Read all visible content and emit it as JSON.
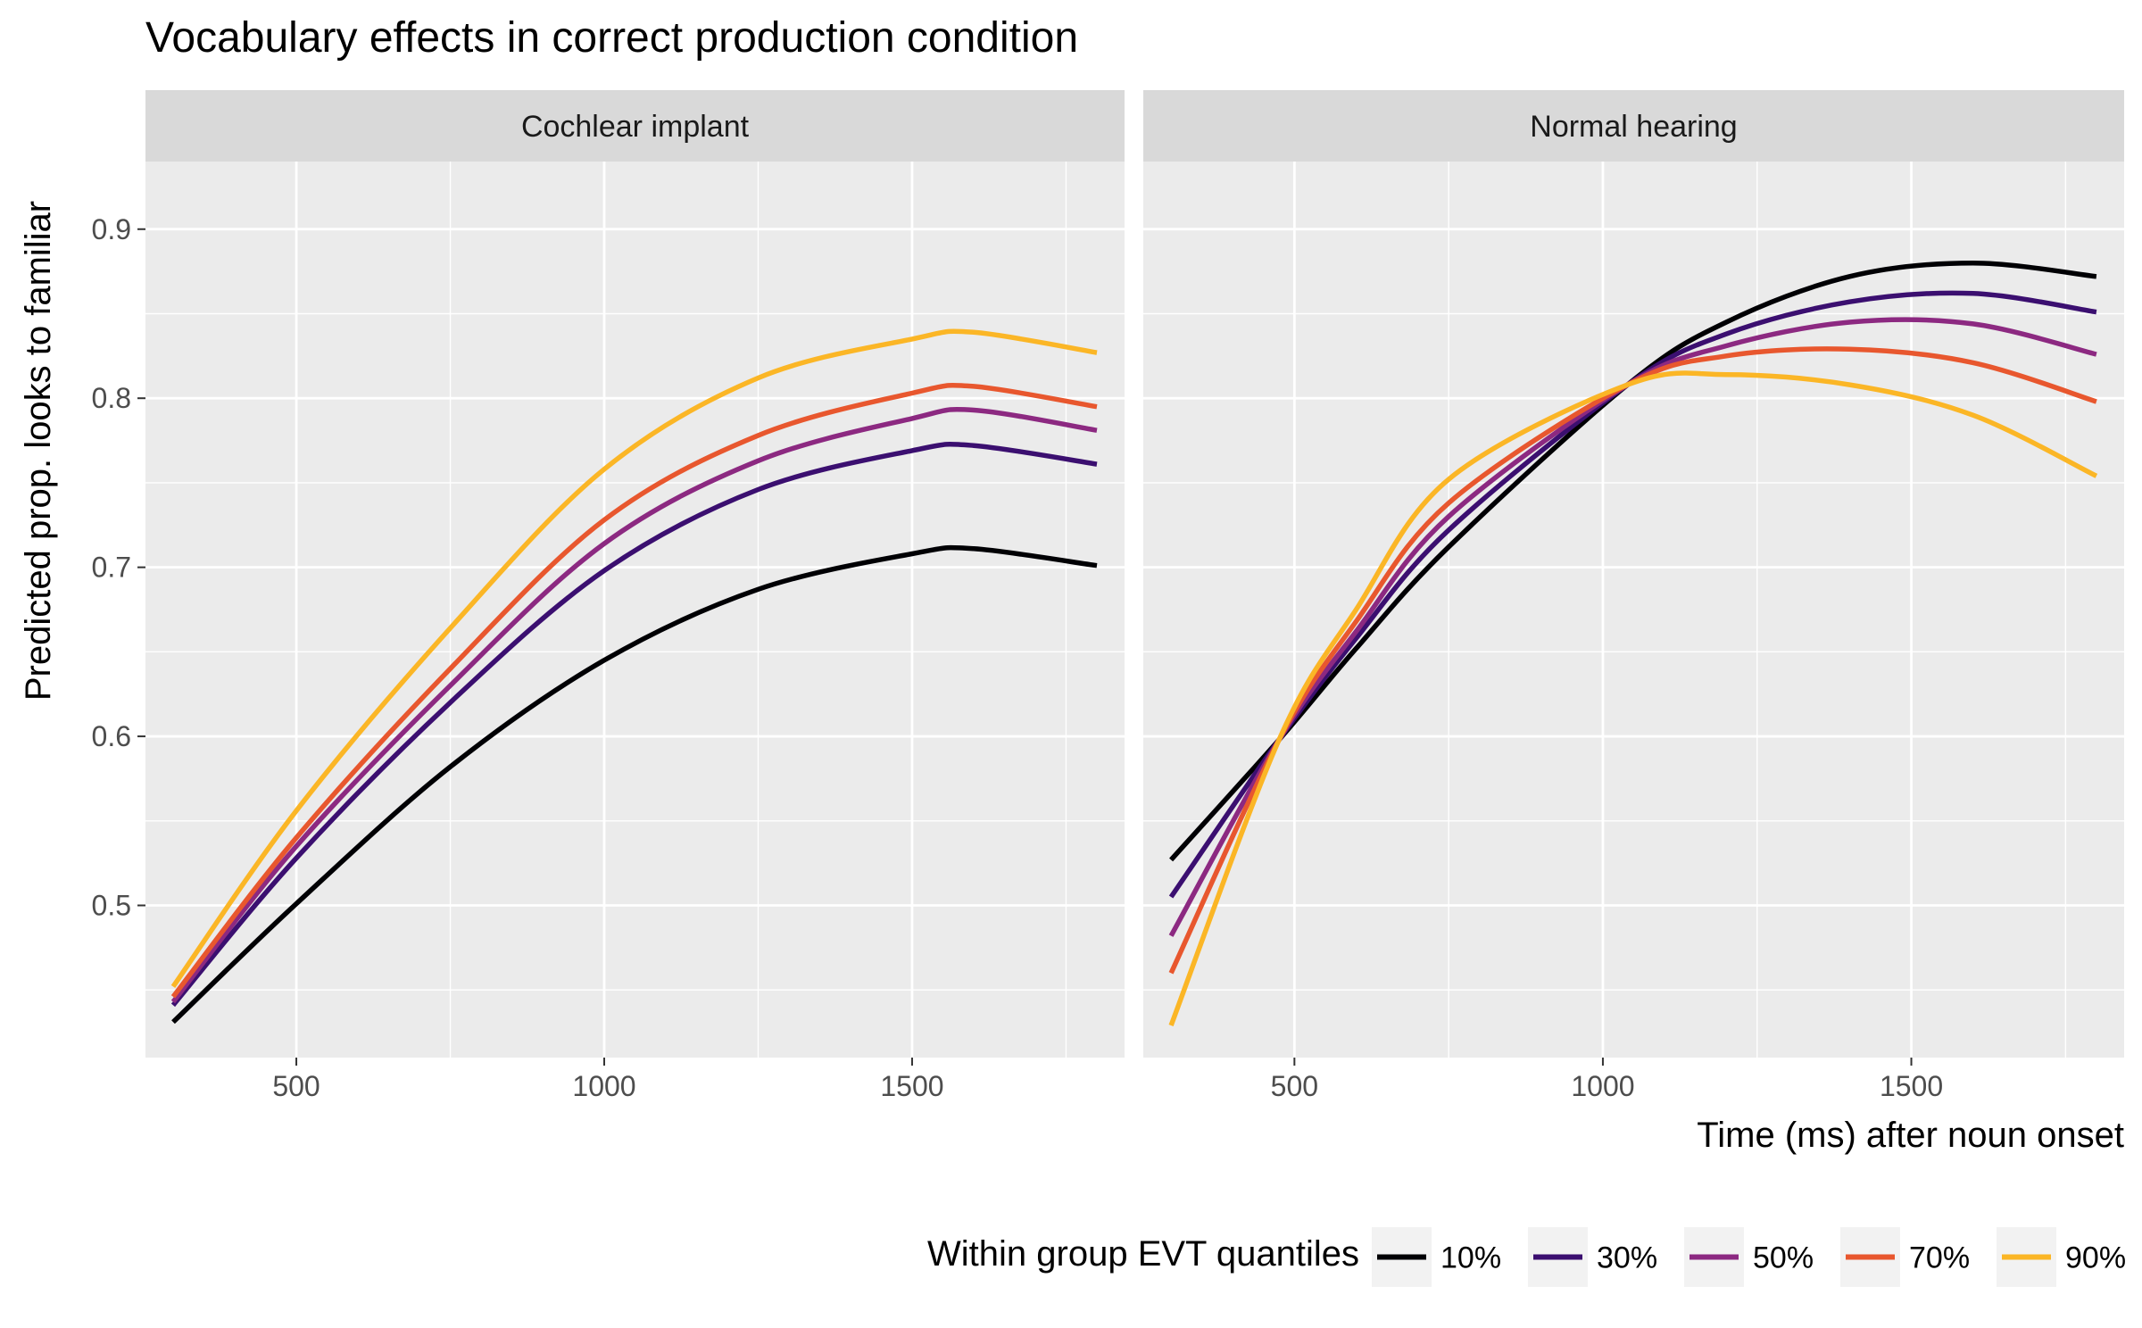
{
  "chart_data": {
    "type": "line",
    "title": "Vocabulary effects in correct production condition",
    "xlabel": "Time (ms) after noun onset",
    "ylabel": "Predicted prop. looks to familiar",
    "xlim": [
      255,
      1845
    ],
    "ylim": [
      0.41,
      0.94
    ],
    "x_ticks": [
      500,
      1000,
      1500
    ],
    "y_ticks": [
      0.5,
      0.6,
      0.7,
      0.8,
      0.9
    ],
    "grid": true,
    "legend": {
      "title": "Within group EVT quantiles",
      "position": "bottom-right",
      "entries": [
        "10%",
        "30%",
        "50%",
        "70%",
        "90%"
      ]
    },
    "colors": {
      "10%": "#000004",
      "30%": "#3b0f70",
      "50%": "#8c2981",
      "70%": "#e8572e",
      "90%": "#fbb626",
      "panel_bg": "#ebebeb",
      "strip_bg": "#d9d9d9"
    },
    "panels": [
      {
        "strip": "Cochlear implant",
        "x": [
          300,
          500,
          750,
          1000,
          1250,
          1500,
          1600,
          1800
        ],
        "series": [
          {
            "name": "10%",
            "values": [
              0.431,
              0.501,
              0.582,
              0.645,
              0.687,
              0.708,
              0.711,
              0.701
            ]
          },
          {
            "name": "30%",
            "values": [
              0.441,
              0.528,
              0.62,
              0.698,
              0.746,
              0.769,
              0.772,
              0.761
            ]
          },
          {
            "name": "50%",
            "values": [
              0.443,
              0.535,
              0.63,
              0.714,
              0.763,
              0.788,
              0.793,
              0.781
            ]
          },
          {
            "name": "70%",
            "values": [
              0.446,
              0.54,
              0.64,
              0.728,
              0.778,
              0.803,
              0.807,
              0.795
            ]
          },
          {
            "name": "90%",
            "values": [
              0.452,
              0.556,
              0.664,
              0.758,
              0.812,
              0.835,
              0.839,
              0.827
            ]
          }
        ]
      },
      {
        "strip": "Normal hearing",
        "x": [
          300,
          475,
          600,
          750,
          1040,
          1200,
          1400,
          1600,
          1800
        ],
        "series": [
          {
            "name": "10%",
            "values": [
              0.527,
              0.598,
              0.652,
              0.712,
              0.808,
              0.845,
              0.872,
              0.88,
              0.872
            ]
          },
          {
            "name": "30%",
            "values": [
              0.505,
              0.598,
              0.658,
              0.722,
              0.808,
              0.838,
              0.857,
              0.862,
              0.851
            ]
          },
          {
            "name": "50%",
            "values": [
              0.482,
              0.598,
              0.662,
              0.73,
              0.808,
              0.831,
              0.845,
              0.844,
              0.826
            ]
          },
          {
            "name": "70%",
            "values": [
              0.46,
              0.598,
              0.668,
              0.738,
              0.808,
              0.825,
              0.829,
              0.821,
              0.798
            ]
          },
          {
            "name": "90%",
            "values": [
              0.429,
              0.598,
              0.675,
              0.752,
              0.808,
              0.814,
              0.808,
              0.79,
              0.754
            ]
          }
        ]
      }
    ]
  }
}
